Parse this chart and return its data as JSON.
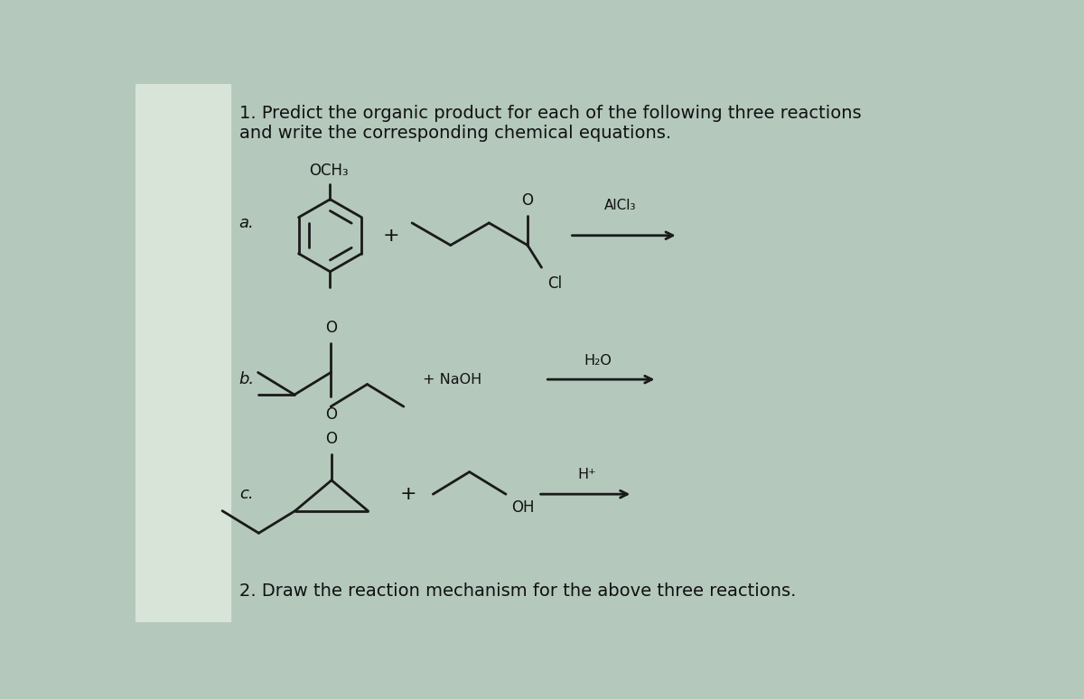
{
  "bg_color": "#b4c8bc",
  "text_color": "#111111",
  "line_color": "#1a1a1a",
  "title1": "1. Predict the organic product for each of the following three reactions",
  "title2": "and write the corresponding chemical equations.",
  "footer": "2. Draw the reaction mechanism for the above three reactions.",
  "title_fontsize": 14,
  "label_fontsize": 13,
  "footer_fontsize": 14,
  "chem_fontsize": 11,
  "reagent_fontsize": 11.5
}
